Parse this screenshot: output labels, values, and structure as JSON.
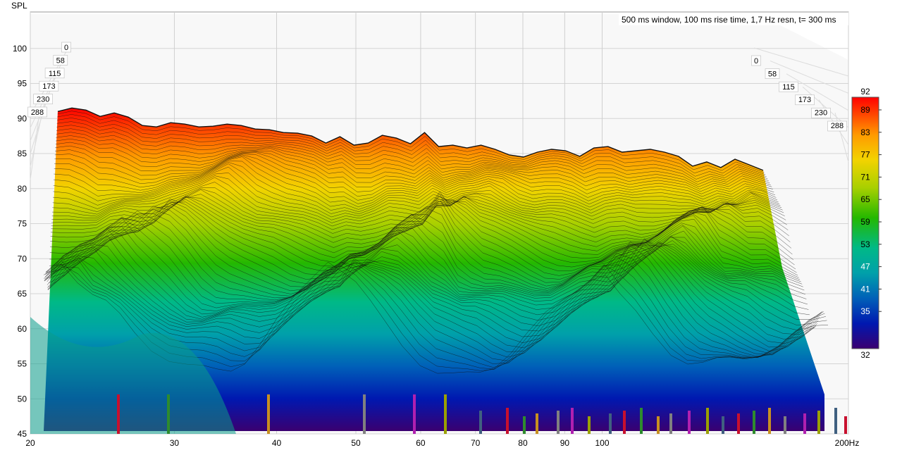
{
  "chart_data": {
    "type": "waterfall",
    "ylabel": "SPL",
    "xunit": "Hz",
    "settings": "500 ms window, 100 ms rise time,  1,7 Hz resn, t= 300 ms",
    "y_ticks": [
      45,
      50,
      55,
      60,
      65,
      70,
      75,
      80,
      85,
      90,
      95,
      100
    ],
    "ylim": [
      45,
      105
    ],
    "x_ticks": [
      {
        "value": 20,
        "label": "20"
      },
      {
        "value": 30,
        "label": "30"
      },
      {
        "value": 40,
        "label": "40"
      },
      {
        "value": 50,
        "label": "50"
      },
      {
        "value": 60,
        "label": "60"
      },
      {
        "value": 70,
        "label": "70"
      },
      {
        "value": 80,
        "label": "80"
      },
      {
        "value": 90,
        "label": "90"
      },
      {
        "value": 100,
        "label": "100"
      },
      {
        "value": 200,
        "label": "200Hz"
      }
    ],
    "xlim": [
      20,
      200
    ],
    "x_scale": "log",
    "time_ticks_ms": [
      "0",
      "58",
      "115",
      "173",
      "230",
      "288"
    ],
    "colorbar": {
      "min": 32,
      "max": 92,
      "ticks": [
        "89",
        "83",
        "77",
        "71",
        "65",
        "59",
        "53",
        "47",
        "41",
        "35"
      ],
      "min_label": "32",
      "max_label": "92"
    },
    "front_slice": {
      "t_ms": 0,
      "freq_hz": [
        21,
        22,
        24,
        26,
        28,
        30,
        32,
        34,
        36,
        38,
        40,
        42,
        44,
        46,
        48,
        50,
        52,
        54,
        56,
        58,
        60,
        62,
        64,
        66,
        68,
        70,
        72,
        74,
        76,
        78,
        80,
        82,
        84,
        86,
        88,
        90,
        92,
        95,
        98,
        101,
        104,
        108,
        112,
        116,
        120,
        125,
        130,
        135,
        140,
        145,
        150
      ],
      "spl_db": [
        91.0,
        91.5,
        91.2,
        90.3,
        90.8,
        90.2,
        89.0,
        88.8,
        89.4,
        89.2,
        88.8,
        88.9,
        89.2,
        89.0,
        88.5,
        88.4,
        88.0,
        87.9,
        87.5,
        86.5,
        87.4,
        86.2,
        86.5,
        87.6,
        87.2,
        86.4,
        88.0,
        86.0,
        86.2,
        85.8,
        86.2,
        85.6,
        84.8,
        84.5,
        85.2,
        85.6,
        85.4,
        84.6,
        85.8,
        86.0,
        85.2,
        85.4,
        85.6,
        85.2,
        84.6,
        83.2,
        83.8,
        83.0,
        84.2,
        83.4,
        82.6
      ]
    }
  }
}
